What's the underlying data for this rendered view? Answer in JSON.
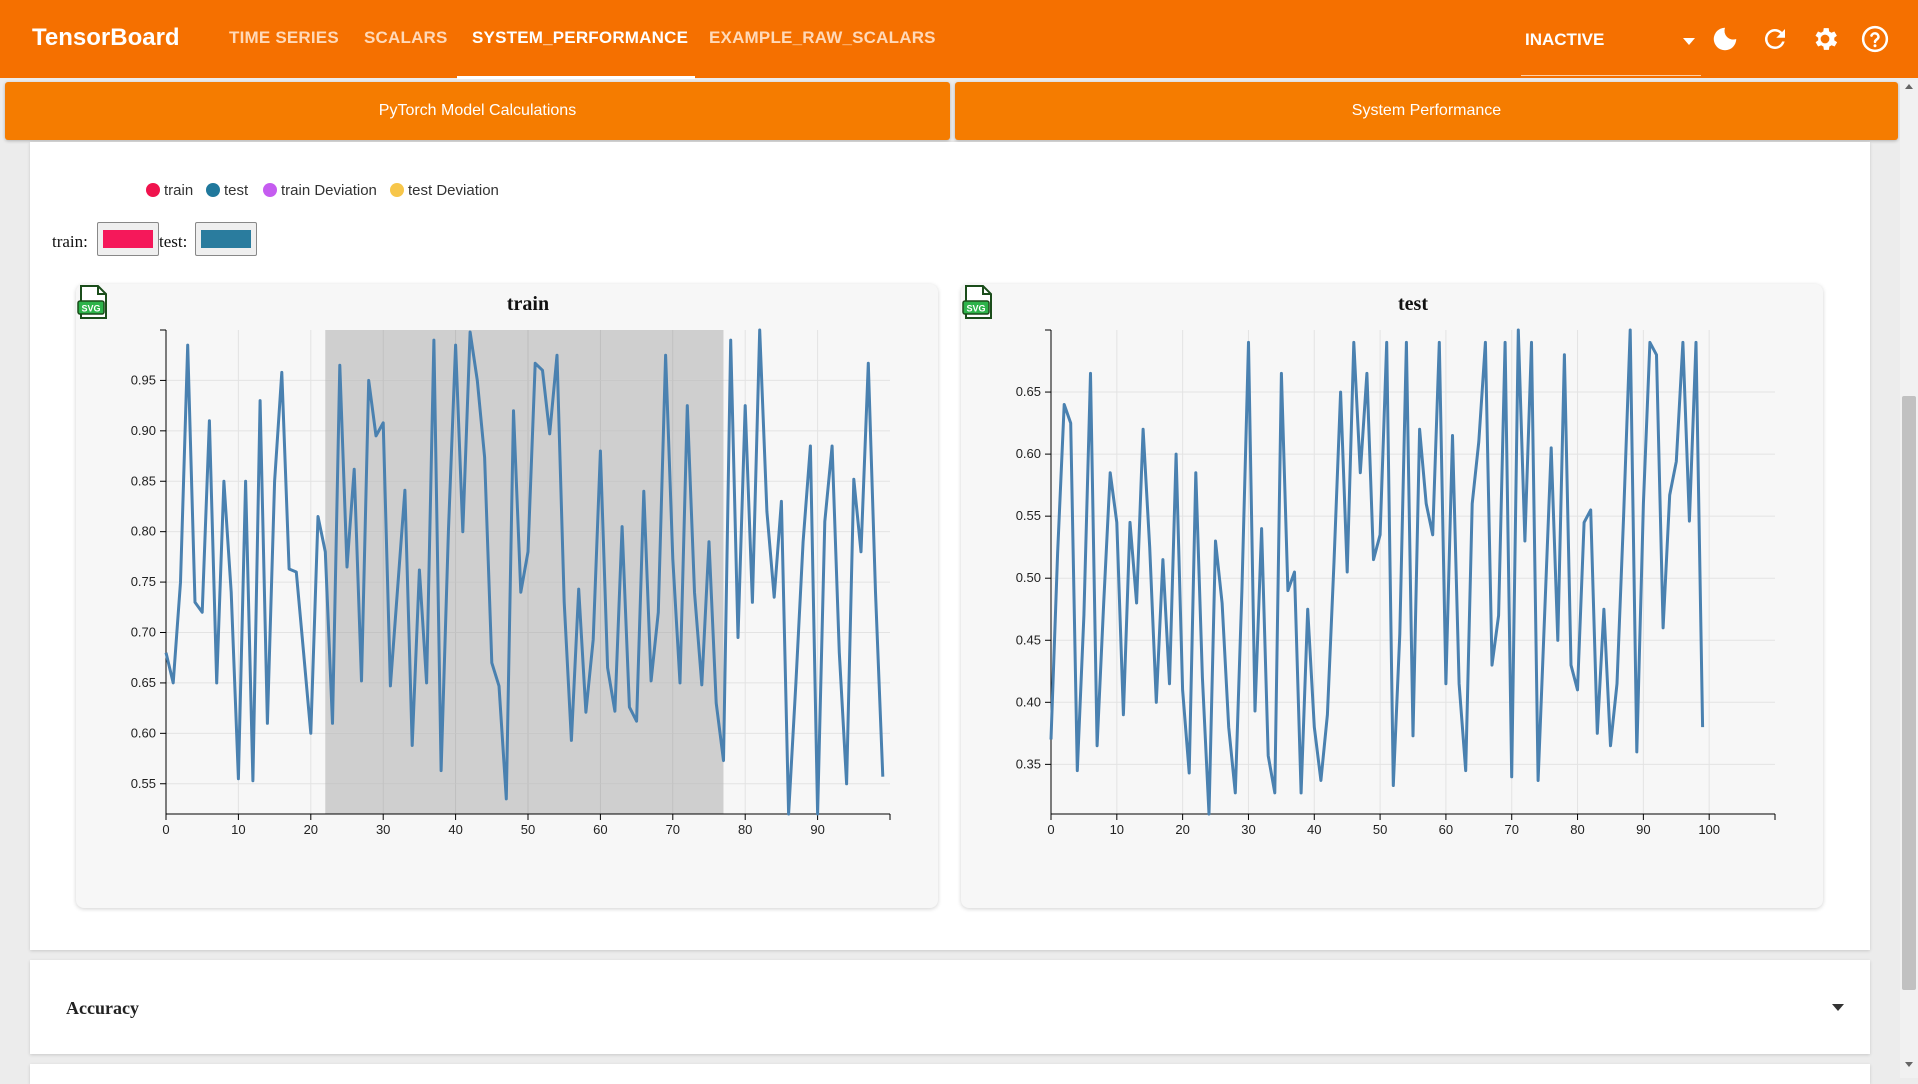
{
  "app": {
    "brand": "TensorBoard"
  },
  "nav": {
    "tabs": [
      {
        "label": "TIME SERIES"
      },
      {
        "label": "SCALARS"
      },
      {
        "label": "SYSTEM_PERFORMANCE",
        "active": true
      },
      {
        "label": "EXAMPLE_RAW_SCALARS"
      }
    ],
    "run_select": "INACTIVE",
    "icons": [
      "dark-mode-icon",
      "reload-icon",
      "settings-icon",
      "help-icon"
    ]
  },
  "subtabs": [
    "PyTorch Model Calculations",
    "System Performance"
  ],
  "legend": [
    {
      "label": "train",
      "color": "#f0134d"
    },
    {
      "label": "test",
      "color": "#20789c"
    },
    {
      "label": "train Deviation",
      "color": "#c55cf0"
    },
    {
      "label": "test Deviation",
      "color": "#f7c64a"
    }
  ],
  "color_pickers": {
    "train_label": "train:",
    "test_label": "test:",
    "train_color": "#f5185a",
    "test_color": "#2a7c9e"
  },
  "accordion": {
    "title": "Accuracy"
  },
  "line_color": "#4a81b0",
  "chart_data": [
    {
      "type": "line",
      "title": "train",
      "xlim": [
        0,
        100
      ],
      "ylim": [
        0.52,
        1.0
      ],
      "xticks": [
        0,
        10,
        20,
        30,
        40,
        50,
        60,
        70,
        80,
        90
      ],
      "yticks": [
        0.55,
        0.6,
        0.65,
        0.7,
        0.75,
        0.8,
        0.85,
        0.9,
        0.95
      ],
      "brush": [
        22,
        77
      ],
      "x": [
        0,
        1,
        2,
        3,
        4,
        5,
        6,
        7,
        8,
        9,
        10,
        11,
        12,
        13,
        14,
        15,
        16,
        17,
        18,
        19,
        20,
        21,
        22,
        23,
        24,
        25,
        26,
        27,
        28,
        29,
        30,
        31,
        32,
        33,
        34,
        35,
        36,
        37,
        38,
        39,
        40,
        41,
        42,
        43,
        44,
        45,
        46,
        47,
        48,
        49,
        50,
        51,
        52,
        53,
        54,
        55,
        56,
        57,
        58,
        59,
        60,
        61,
        62,
        63,
        64,
        65,
        66,
        67,
        68,
        69,
        70,
        71,
        72,
        73,
        74,
        75,
        76,
        77,
        78,
        79,
        80,
        81,
        82,
        83,
        84,
        85,
        86,
        87,
        88,
        89,
        90,
        91,
        92,
        93,
        94,
        95,
        96,
        97,
        98,
        99
      ],
      "y": [
        0.68,
        0.65,
        0.75,
        0.985,
        0.73,
        0.72,
        0.91,
        0.65,
        0.85,
        0.74,
        0.555,
        0.85,
        0.553,
        0.93,
        0.61,
        0.85,
        0.958,
        0.763,
        0.76,
        0.68,
        0.6,
        0.815,
        0.78,
        0.61,
        0.965,
        0.765,
        0.862,
        0.652,
        0.95,
        0.895,
        0.908,
        0.647,
        0.745,
        0.841,
        0.588,
        0.762,
        0.65,
        0.99,
        0.563,
        0.8,
        0.985,
        0.8,
        0.998,
        0.95,
        0.874,
        0.67,
        0.647,
        0.535,
        0.92,
        0.74,
        0.78,
        0.967,
        0.96,
        0.897,
        0.975,
        0.73,
        0.593,
        0.743,
        0.621,
        0.693,
        0.88,
        0.665,
        0.622,
        0.805,
        0.626,
        0.612,
        0.84,
        0.652,
        0.72,
        0.975,
        0.773,
        0.65,
        0.925,
        0.74,
        0.648,
        0.79,
        0.63,
        0.573,
        0.99,
        0.695,
        0.925,
        0.73,
        1.0,
        0.82,
        0.735,
        0.83,
        0.52,
        0.65,
        0.79,
        0.885,
        0.52,
        0.81,
        0.885,
        0.68,
        0.55,
        0.852,
        0.78,
        0.967,
        0.74,
        0.557
      ]
    },
    {
      "type": "line",
      "title": "test",
      "xlim": [
        0,
        110
      ],
      "ylim": [
        0.31,
        0.7
      ],
      "xticks": [
        0,
        10,
        20,
        30,
        40,
        50,
        60,
        70,
        80,
        90,
        100
      ],
      "yticks": [
        0.35,
        0.4,
        0.45,
        0.5,
        0.55,
        0.6,
        0.65
      ],
      "x": [
        0,
        1,
        2,
        3,
        4,
        5,
        6,
        7,
        8,
        9,
        10,
        11,
        12,
        13,
        14,
        15,
        16,
        17,
        18,
        19,
        20,
        21,
        22,
        23,
        24,
        25,
        26,
        27,
        28,
        29,
        30,
        31,
        32,
        33,
        34,
        35,
        36,
        37,
        38,
        39,
        40,
        41,
        42,
        43,
        44,
        45,
        46,
        47,
        48,
        49,
        50,
        51,
        52,
        53,
        54,
        55,
        56,
        57,
        58,
        59,
        60,
        61,
        62,
        63,
        64,
        65,
        66,
        67,
        68,
        69,
        70,
        71,
        72,
        73,
        74,
        75,
        76,
        77,
        78,
        79,
        80,
        81,
        82,
        83,
        84,
        85,
        86,
        87,
        88,
        89,
        90,
        91,
        92,
        93,
        94,
        95,
        96,
        97,
        98,
        99
      ],
      "y": [
        0.37,
        0.52,
        0.64,
        0.625,
        0.345,
        0.47,
        0.665,
        0.365,
        0.48,
        0.585,
        0.545,
        0.39,
        0.545,
        0.48,
        0.62,
        0.525,
        0.4,
        0.515,
        0.415,
        0.6,
        0.41,
        0.343,
        0.585,
        0.42,
        0.31,
        0.53,
        0.48,
        0.38,
        0.327,
        0.49,
        0.69,
        0.393,
        0.54,
        0.357,
        0.327,
        0.665,
        0.49,
        0.505,
        0.327,
        0.475,
        0.38,
        0.337,
        0.39,
        0.513,
        0.65,
        0.505,
        0.69,
        0.585,
        0.665,
        0.515,
        0.535,
        0.69,
        0.333,
        0.455,
        0.69,
        0.373,
        0.62,
        0.56,
        0.535,
        0.69,
        0.415,
        0.615,
        0.415,
        0.345,
        0.56,
        0.61,
        0.69,
        0.43,
        0.47,
        0.69,
        0.34,
        0.7,
        0.53,
        0.69,
        0.337,
        0.47,
        0.605,
        0.45,
        0.68,
        0.43,
        0.41,
        0.545,
        0.555,
        0.375,
        0.475,
        0.365,
        0.415,
        0.55,
        0.7,
        0.36,
        0.56,
        0.69,
        0.68,
        0.46,
        0.567,
        0.594,
        0.69,
        0.546,
        0.69,
        0.38
      ]
    }
  ]
}
